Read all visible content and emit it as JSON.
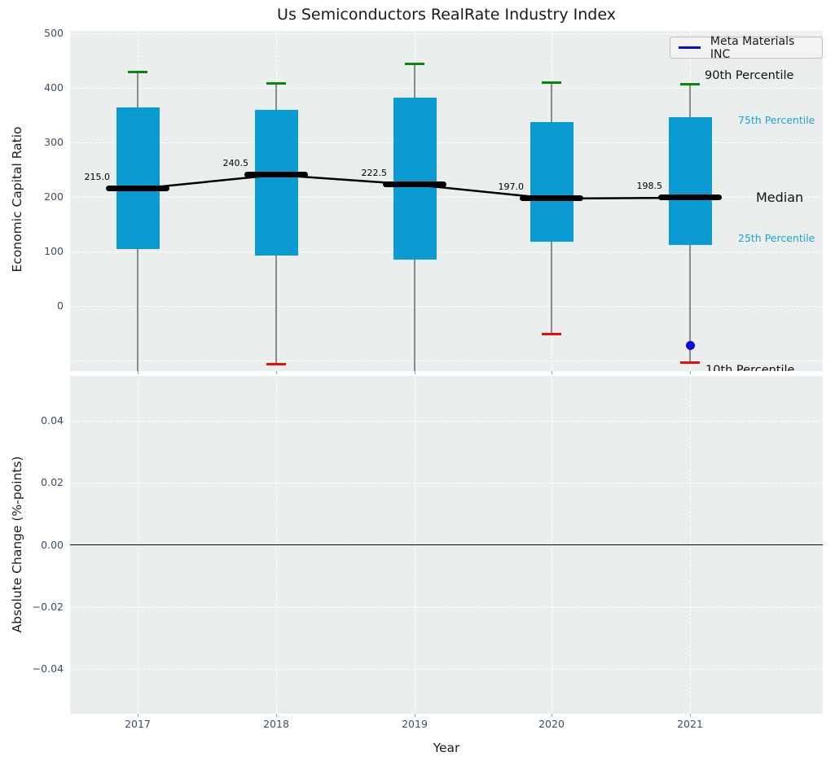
{
  "title": "Us Semiconductors RealRate Industry Index",
  "legend": {
    "label": "Meta Materials INC"
  },
  "xlabel": "Year",
  "years": [
    "2017",
    "2018",
    "2019",
    "2020",
    "2021"
  ],
  "top_chart": {
    "ylabel": "Economic Capital Ratio",
    "ytick_labels": [
      "500",
      "400",
      "300",
      "200",
      "100",
      "0"
    ],
    "ytick_values": [
      500,
      400,
      300,
      200,
      100,
      0
    ],
    "annotations": {
      "p90": "90th Percentile",
      "p75": "75th Percentile",
      "median": "Median",
      "p25": "25th Percentile",
      "p10": "10th Percentile"
    }
  },
  "bottom_chart": {
    "ylabel": "Absolute Change (%-points)",
    "ytick_labels": [
      "0.04",
      "0.02",
      "0.00",
      "−0.02",
      "−0.04"
    ],
    "ytick_values": [
      0.04,
      0.02,
      0.0,
      -0.02,
      -0.04
    ]
  },
  "colors": {
    "box_fill": "#0a9bd2",
    "p90_cap": "#0a860a",
    "p10_cap": "#ea0c0c",
    "company_line": "#0b0bd9",
    "whisker": "#8a8a8a",
    "median": "#000000",
    "cyan_label": "#1ca4d6",
    "plot_background": "#eaefee",
    "gridline": "#ffffff"
  },
  "chart_data": {
    "type": "box",
    "title": "Us Semiconductors RealRate Industry Index",
    "xlabel": "Year",
    "categories": [
      "2017",
      "2018",
      "2019",
      "2020",
      "2021"
    ],
    "top_panel": {
      "ylabel": "Economic Capital Ratio",
      "ylim": [
        -120,
        505
      ],
      "grid": true,
      "boxes": [
        {
          "year": "2017",
          "p90": 430,
          "p75": 365,
          "median": 215.0,
          "p25": 104,
          "p10": null,
          "p10_below_axis": true
        },
        {
          "year": "2018",
          "p90": 408,
          "p75": 360,
          "median": 240.5,
          "p25": 93,
          "p10": -108,
          "p10_below_axis": false
        },
        {
          "year": "2019",
          "p90": 444,
          "p75": 383,
          "median": 222.5,
          "p25": 85,
          "p10": null,
          "p10_below_axis": true
        },
        {
          "year": "2020",
          "p90": 410,
          "p75": 337,
          "median": 197.0,
          "p25": 117,
          "p10": -52,
          "p10_below_axis": false
        },
        {
          "year": "2021",
          "p90": 407,
          "p75": 346,
          "median": 198.5,
          "p25": 112,
          "p10": -105,
          "p10_below_axis": false
        }
      ],
      "median_trend": [
        215.0,
        240.5,
        222.5,
        197.0,
        198.5
      ],
      "median_labels": [
        "215.0",
        "240.5",
        "222.5",
        "197.0",
        "198.5"
      ],
      "company_series": {
        "name": "Meta Materials INC",
        "points": [
          {
            "year": "2021",
            "value": -73
          }
        ]
      }
    },
    "bottom_panel": {
      "ylabel": "Absolute Change (%-points)",
      "ylim": [
        -0.0545,
        0.0545
      ],
      "grid": true,
      "zero_line": 0.0,
      "series": []
    },
    "legend": {
      "entries": [
        "Meta Materials INC"
      ],
      "position": "top-right"
    }
  }
}
